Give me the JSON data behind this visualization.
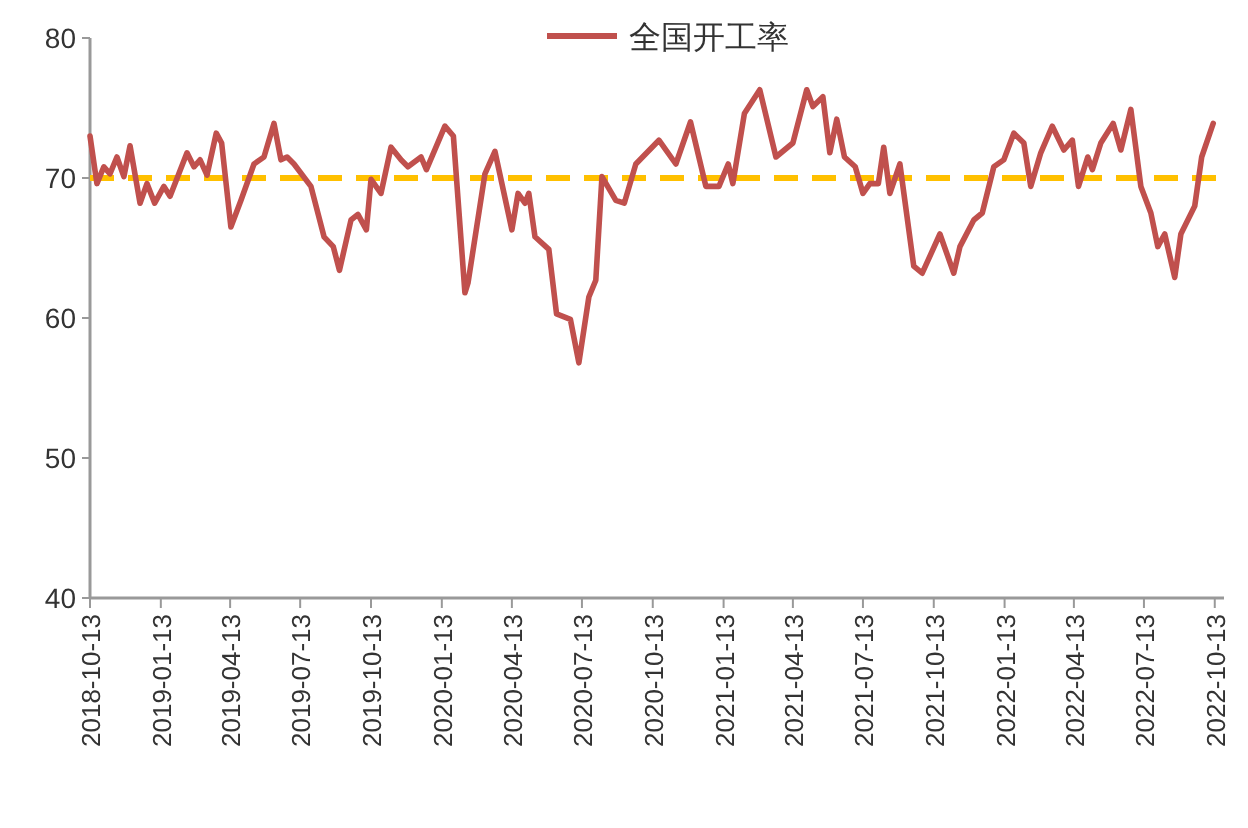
{
  "chart_data": {
    "type": "line",
    "x": [
      "2018-10-13",
      "2018-10-22",
      "2018-10-31",
      "2018-11-08",
      "2018-11-17",
      "2018-11-26",
      "2018-12-04",
      "2018-12-17",
      "2018-12-26",
      "2019-01-05",
      "2019-01-17",
      "2019-01-25",
      "2019-02-16",
      "2019-02-25",
      "2019-03-05",
      "2019-03-14",
      "2019-03-26",
      "2019-04-02",
      "2019-04-14",
      "2019-04-27",
      "2019-05-14",
      "2019-05-27",
      "2019-06-09",
      "2019-06-18",
      "2019-06-26",
      "2019-07-05",
      "2019-07-27",
      "2019-08-13",
      "2019-08-25",
      "2019-09-02",
      "2019-09-17",
      "2019-09-26",
      "2019-10-07",
      "2019-10-13",
      "2019-10-26",
      "2019-11-08",
      "2019-11-21",
      "2019-11-30",
      "2019-12-17",
      "2019-12-24",
      "2020-01-17",
      "2020-01-28",
      "2020-02-12",
      "2020-02-16",
      "2020-03-09",
      "2020-03-22",
      "2020-04-13",
      "2020-04-21",
      "2020-04-30",
      "2020-05-05",
      "2020-05-13",
      "2020-05-31",
      "2020-06-10",
      "2020-06-28",
      "2020-07-09",
      "2020-07-22",
      "2020-07-31",
      "2020-08-08",
      "2020-08-26",
      "2020-09-06",
      "2020-09-21",
      "2020-10-21",
      "2020-11-12",
      "2020-12-01",
      "2020-12-21",
      "2021-01-07",
      "2021-01-19",
      "2021-01-25",
      "2021-02-09",
      "2021-03-01",
      "2021-03-22",
      "2021-04-13",
      "2021-05-01",
      "2021-05-09",
      "2021-05-22",
      "2021-05-31",
      "2021-06-09",
      "2021-06-19",
      "2021-07-03",
      "2021-07-13",
      "2021-07-22",
      "2021-08-02",
      "2021-08-09",
      "2021-08-17",
      "2021-08-30",
      "2021-09-17",
      "2021-09-28",
      "2021-10-21",
      "2021-11-08",
      "2021-11-16",
      "2021-12-04",
      "2021-12-15",
      "2021-12-30",
      "2022-01-12",
      "2022-01-25",
      "2022-02-07",
      "2022-02-16",
      "2022-03-01",
      "2022-03-16",
      "2022-03-31",
      "2022-04-11",
      "2022-04-19",
      "2022-05-01",
      "2022-05-07",
      "2022-05-18",
      "2022-06-03",
      "2022-06-13",
      "2022-06-26",
      "2022-07-09",
      "2022-07-22",
      "2022-07-31",
      "2022-08-09",
      "2022-08-22",
      "2022-08-30",
      "2022-09-17",
      "2022-09-26",
      "2022-10-11"
    ],
    "series": [
      {
        "name": "全国开工率",
        "color": "#c0504d",
        "values": [
          73.0,
          69.6,
          70.8,
          70.3,
          71.5,
          70.1,
          72.3,
          68.2,
          69.6,
          68.2,
          69.4,
          68.7,
          71.8,
          70.8,
          71.3,
          70.2,
          73.2,
          72.5,
          66.5,
          68.4,
          71.0,
          71.5,
          73.9,
          71.3,
          71.5,
          71.0,
          69.4,
          65.8,
          65.1,
          63.4,
          67.0,
          67.4,
          66.3,
          69.9,
          68.9,
          72.2,
          71.3,
          70.8,
          71.5,
          70.6,
          73.7,
          73.0,
          61.8,
          62.5,
          70.3,
          71.9,
          66.3,
          68.9,
          68.2,
          68.9,
          65.8,
          64.9,
          60.3,
          59.9,
          56.8,
          61.5,
          62.7,
          70.1,
          68.4,
          68.2,
          71.0,
          72.7,
          71.0,
          74.0,
          69.4,
          69.4,
          71.0,
          69.6,
          74.6,
          76.3,
          71.5,
          72.5,
          76.3,
          75.1,
          75.8,
          71.8,
          74.2,
          71.5,
          70.8,
          68.9,
          69.6,
          69.6,
          72.2,
          68.9,
          71.0,
          63.7,
          63.2,
          66.0,
          63.2,
          65.1,
          67.0,
          67.5,
          70.8,
          71.3,
          73.2,
          72.5,
          69.4,
          71.8,
          73.7,
          72.0,
          72.7,
          69.4,
          71.5,
          70.6,
          72.5,
          73.9,
          72.0,
          74.9,
          69.4,
          67.5,
          65.1,
          66.0,
          62.9,
          66.0,
          68.0,
          71.5,
          73.9
        ]
      }
    ],
    "xlim": [
      "2018-10-13",
      "2022-10-25"
    ],
    "xticks": [
      "2018-10-13",
      "2019-01-13",
      "2019-04-13",
      "2019-07-13",
      "2019-10-13",
      "2020-01-13",
      "2020-04-13",
      "2020-07-13",
      "2020-10-13",
      "2021-01-13",
      "2021-04-13",
      "2021-07-13",
      "2021-10-13",
      "2022-01-13",
      "2022-04-13",
      "2022-07-13",
      "2022-10-13"
    ],
    "ylim": [
      40,
      80
    ],
    "yticks": [
      40,
      50,
      60,
      70,
      80
    ],
    "ref_lines": [
      {
        "axis": "y",
        "value": 70,
        "color": "#ffc000",
        "line_style": "dashed"
      }
    ],
    "legend": "top",
    "grid": false,
    "marker": "none",
    "line_style": "solid"
  }
}
